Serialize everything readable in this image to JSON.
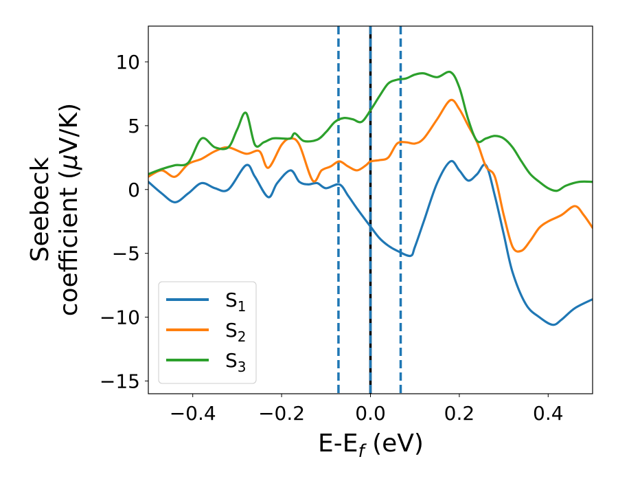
{
  "chart_data": {
    "type": "line",
    "title": "",
    "xlabel": {
      "main": "E-E",
      "sub": "f",
      "tail": " (eV)"
    },
    "ylabel": {
      "line1": "Seebeck",
      "line2_pre": "coefficient  (",
      "line2_mu": "μ",
      "line2_post": "V/K)"
    },
    "xlim": [
      -0.5,
      0.5
    ],
    "ylim": [
      -16,
      12.8
    ],
    "xticks": [
      -0.4,
      -0.2,
      0.0,
      0.2,
      0.4
    ],
    "xtick_labels": [
      "−0.4",
      "−0.2",
      "0.0",
      "0.2",
      "0.4"
    ],
    "yticks": [
      10,
      5,
      0,
      -5,
      -10,
      -15
    ],
    "ytick_labels": [
      "10",
      "5",
      "0",
      "−5",
      "−10",
      "−15"
    ],
    "grid": false,
    "legend_position": "lower-left",
    "vlines": [
      {
        "x": -0.072,
        "color": "#1f77b4",
        "style": "dashed"
      },
      {
        "x": 0.0,
        "color": "#000000",
        "style": "solid"
      },
      {
        "x": 0.0,
        "color": "#1f77b4",
        "style": "dashed"
      },
      {
        "x": 0.068,
        "color": "#1f77b4",
        "style": "dashed"
      }
    ],
    "series": [
      {
        "name": "S",
        "sub": "1",
        "color": "#1f77b4",
        "x": [
          -0.5,
          -0.47,
          -0.44,
          -0.41,
          -0.38,
          -0.35,
          -0.32,
          -0.28,
          -0.26,
          -0.23,
          -0.21,
          -0.18,
          -0.16,
          -0.14,
          -0.12,
          -0.1,
          -0.07,
          -0.05,
          -0.03,
          0.0,
          0.02,
          0.04,
          0.06,
          0.09,
          0.1,
          0.12,
          0.15,
          0.18,
          0.2,
          0.22,
          0.24,
          0.26,
          0.28,
          0.3,
          0.32,
          0.35,
          0.38,
          0.41,
          0.43,
          0.46,
          0.5
        ],
        "y": [
          0.6,
          -0.3,
          -1.0,
          -0.3,
          0.5,
          0.1,
          0.0,
          1.9,
          1.0,
          -0.6,
          0.5,
          1.5,
          0.6,
          0.4,
          0.5,
          0.1,
          0.4,
          -0.5,
          -1.5,
          -2.9,
          -3.8,
          -4.4,
          -4.8,
          -5.2,
          -4.5,
          -2.5,
          0.5,
          2.2,
          1.5,
          0.7,
          1.2,
          1.9,
          -0.5,
          -3.5,
          -6.5,
          -9.0,
          -10.0,
          -10.6,
          -10.2,
          -9.3,
          -8.6
        ]
      },
      {
        "name": "S",
        "sub": "2",
        "color": "#ff7f0e",
        "x": [
          -0.5,
          -0.47,
          -0.44,
          -0.41,
          -0.38,
          -0.35,
          -0.32,
          -0.28,
          -0.25,
          -0.23,
          -0.2,
          -0.18,
          -0.16,
          -0.13,
          -0.11,
          -0.09,
          -0.07,
          -0.05,
          -0.03,
          -0.01,
          0.0,
          0.02,
          0.04,
          0.06,
          0.08,
          0.1,
          0.12,
          0.15,
          0.18,
          0.2,
          0.22,
          0.24,
          0.26,
          0.28,
          0.3,
          0.32,
          0.34,
          0.36,
          0.38,
          0.4,
          0.43,
          0.46,
          0.48,
          0.5
        ],
        "y": [
          1.0,
          1.5,
          1.0,
          2.0,
          2.4,
          3.0,
          3.3,
          2.8,
          3.0,
          1.7,
          3.5,
          4.0,
          3.5,
          0.7,
          1.5,
          1.8,
          2.2,
          1.8,
          1.5,
          1.9,
          2.2,
          2.3,
          2.5,
          3.6,
          3.7,
          3.6,
          4.0,
          5.5,
          7.0,
          6.3,
          5.0,
          3.7,
          1.8,
          1.0,
          -2.0,
          -4.5,
          -4.8,
          -4.0,
          -3.0,
          -2.5,
          -2.0,
          -1.3,
          -2.0,
          -3.0
        ]
      },
      {
        "name": "S",
        "sub": "3",
        "color": "#2ca02c",
        "x": [
          -0.5,
          -0.47,
          -0.44,
          -0.41,
          -0.38,
          -0.35,
          -0.32,
          -0.3,
          -0.28,
          -0.26,
          -0.24,
          -0.22,
          -0.2,
          -0.18,
          -0.17,
          -0.15,
          -0.12,
          -0.1,
          -0.08,
          -0.06,
          -0.04,
          -0.02,
          0.0,
          0.02,
          0.04,
          0.06,
          0.08,
          0.1,
          0.12,
          0.15,
          0.18,
          0.2,
          0.22,
          0.24,
          0.26,
          0.28,
          0.3,
          0.32,
          0.34,
          0.36,
          0.38,
          0.4,
          0.42,
          0.44,
          0.47,
          0.5
        ],
        "y": [
          1.2,
          1.6,
          1.9,
          2.1,
          4.0,
          3.3,
          3.3,
          4.7,
          6.0,
          3.5,
          3.7,
          4.0,
          4.0,
          4.0,
          4.4,
          3.8,
          3.9,
          4.5,
          5.3,
          5.6,
          5.5,
          5.3,
          6.2,
          7.3,
          8.3,
          8.6,
          8.7,
          9.0,
          9.1,
          8.8,
          9.2,
          8.0,
          5.5,
          3.8,
          4.0,
          4.2,
          4.0,
          3.3,
          2.2,
          1.2,
          0.6,
          0.1,
          -0.1,
          0.3,
          0.6,
          0.6
        ]
      }
    ]
  }
}
